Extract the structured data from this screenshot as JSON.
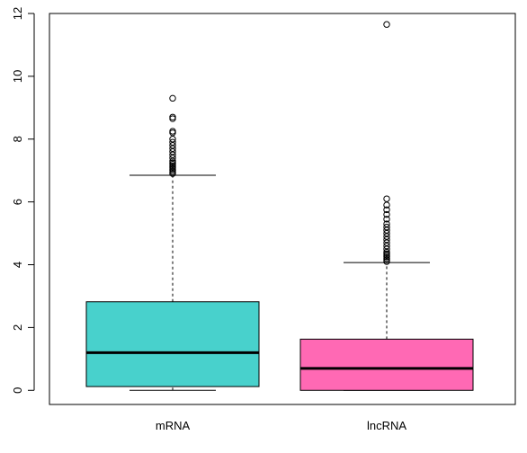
{
  "chart_data": {
    "type": "boxplot",
    "title": "",
    "xlabel": "",
    "ylabel": "",
    "ylim": [
      -0.45,
      12
    ],
    "y_ticks": [
      0,
      2,
      4,
      6,
      8,
      10,
      12
    ],
    "y_tick_labels": [
      "0",
      "2",
      "4",
      "6",
      "8",
      "10",
      "12"
    ],
    "grid": false,
    "legend": "none",
    "categories": [
      "mRNA",
      "lncRNA"
    ],
    "boxes": [
      {
        "name": "mRNA",
        "color": "#48d1cc",
        "min": 0,
        "q1": 0.12,
        "median": 1.2,
        "q3": 2.82,
        "whisker_high": 6.85,
        "outliers": [
          6.9,
          6.95,
          7.0,
          7.05,
          7.1,
          7.15,
          7.2,
          7.25,
          7.3,
          7.4,
          7.5,
          7.6,
          7.7,
          7.8,
          7.9,
          8.0,
          8.2,
          8.25,
          8.65,
          8.7,
          9.3
        ]
      },
      {
        "name": "lncRNA",
        "color": "#ff69b4",
        "min": 0,
        "q1": 0.0,
        "median": 0.7,
        "q3": 1.63,
        "whisker_high": 4.07,
        "outliers": [
          4.1,
          4.15,
          4.2,
          4.25,
          4.3,
          4.35,
          4.4,
          4.5,
          4.6,
          4.7,
          4.8,
          4.9,
          5.0,
          5.1,
          5.2,
          5.3,
          5.45,
          5.6,
          5.75,
          5.9,
          6.1,
          11.65
        ]
      }
    ]
  }
}
